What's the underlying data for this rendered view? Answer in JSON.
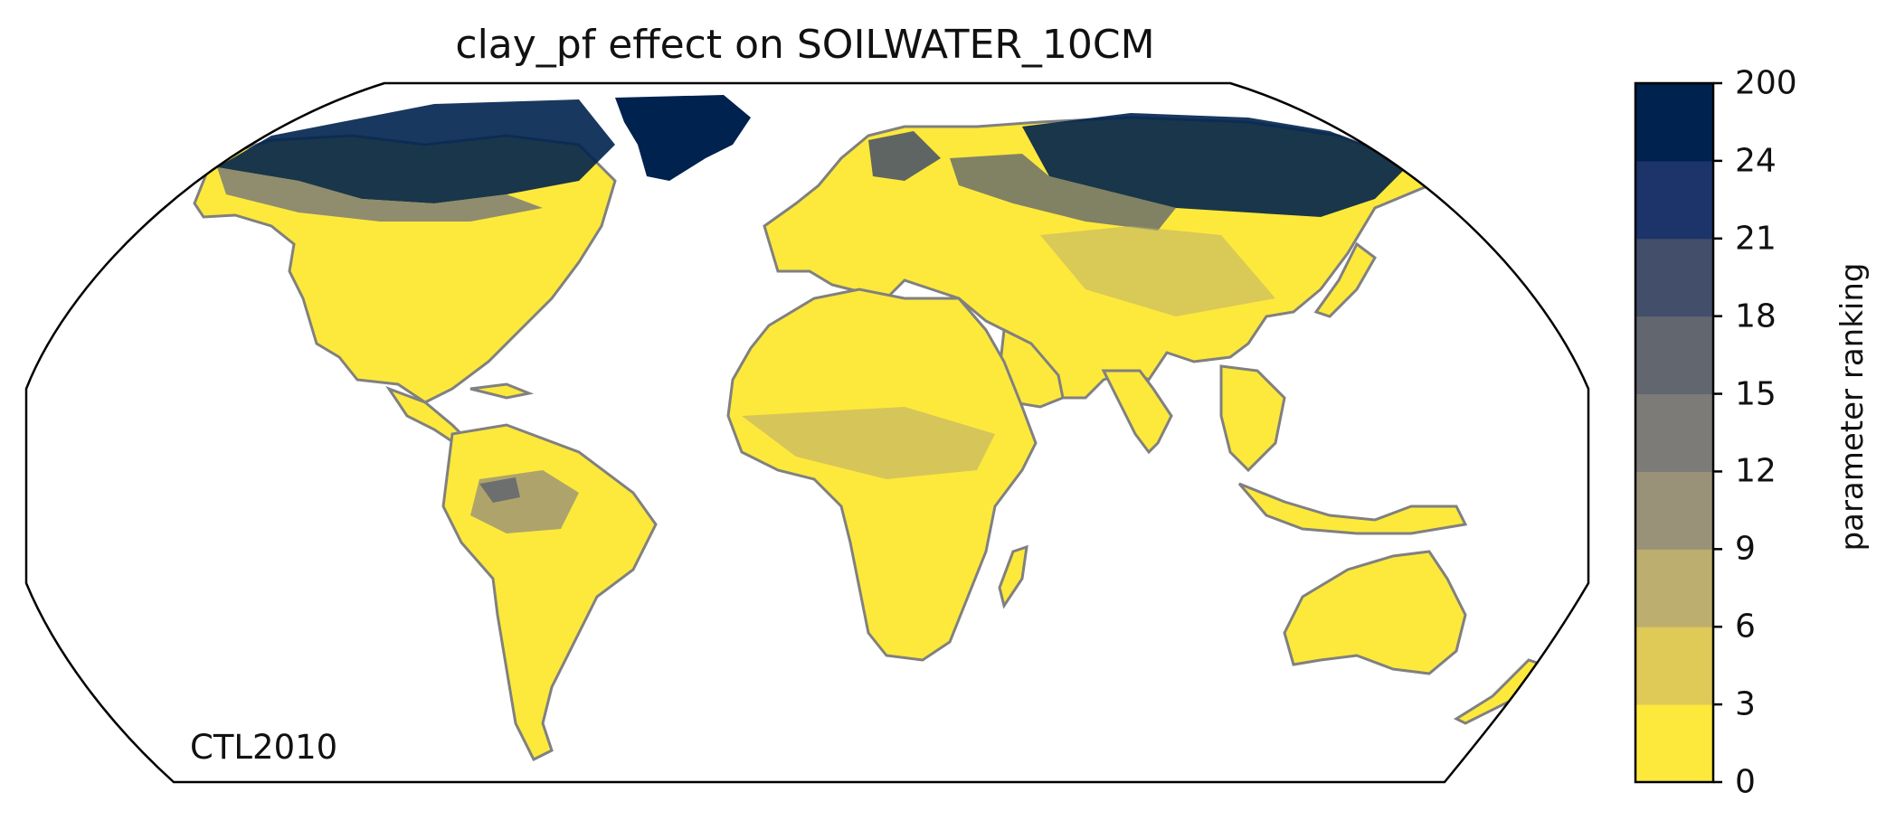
{
  "map": {
    "title": "clay_pf effect on SOILWATER_10CM",
    "scenario_label": "CTL2010",
    "projection": "robinson",
    "land_fill_color": "#fde93b",
    "coastline_color": "#808080"
  },
  "colorbar": {
    "label": "parameter ranking",
    "ticks": [
      "0",
      "3",
      "6",
      "9",
      "12",
      "15",
      "18",
      "21",
      "24",
      "200"
    ],
    "colors": [
      "#fde93b",
      "#dfc957",
      "#bcae6e",
      "#9a9278",
      "#7c7b78",
      "#61666f",
      "#434e6b",
      "#1c346a",
      "#00224e"
    ]
  }
}
